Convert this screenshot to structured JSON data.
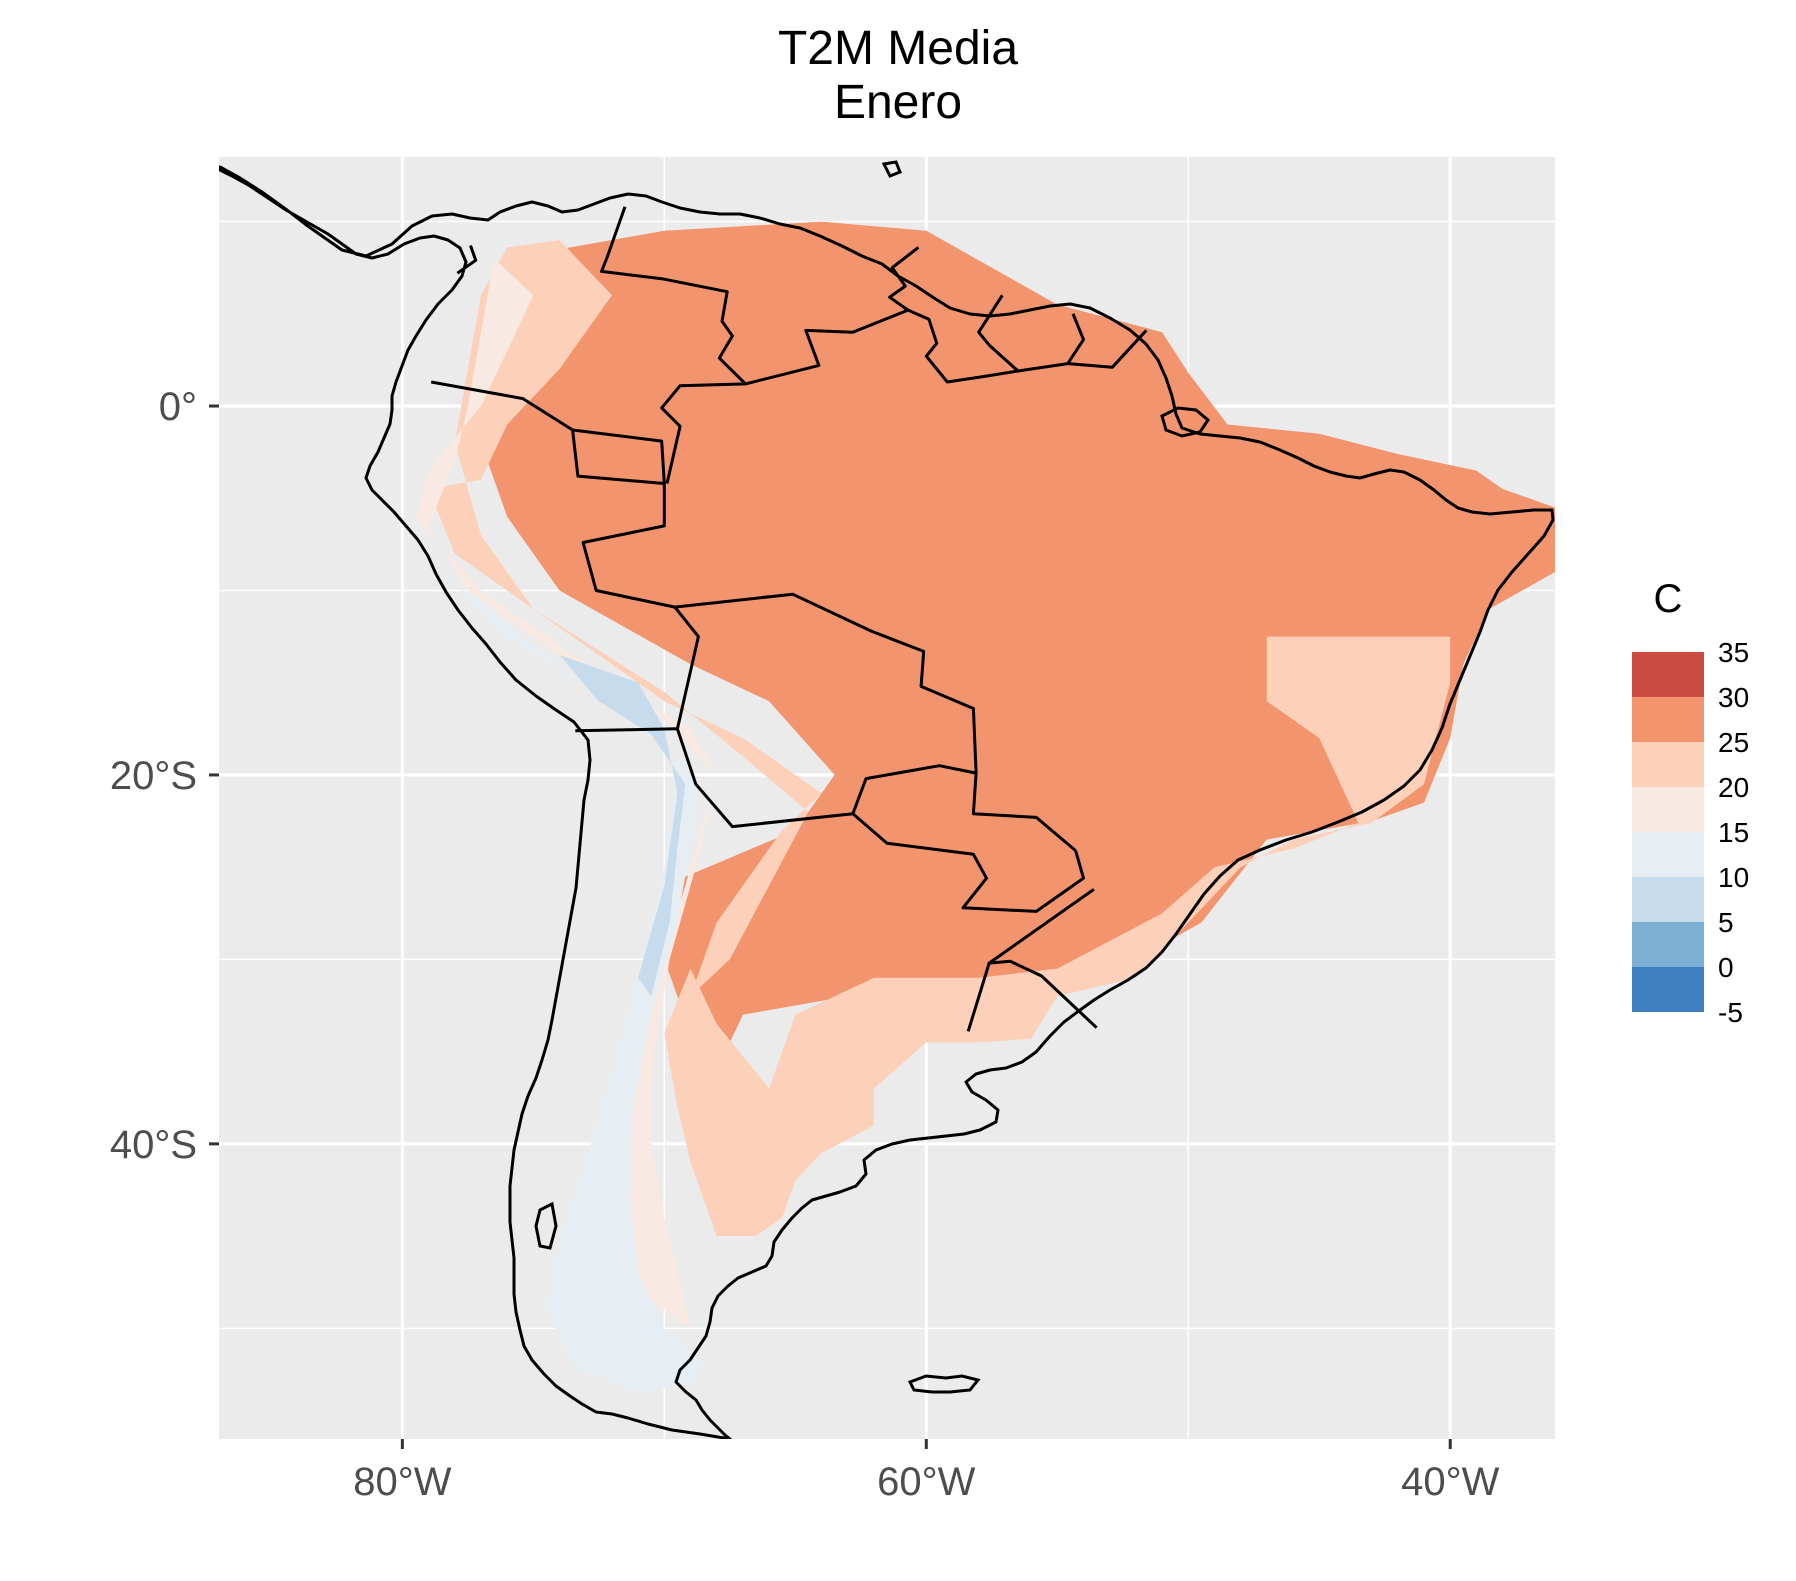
{
  "title": "T2M Media",
  "subtitle": "Enero",
  "chart_data": {
    "type": "heatmap",
    "variable": "T2M Media",
    "month": "Enero",
    "x_axis": {
      "range": [
        -87,
        -36
      ],
      "ticks": [
        -80,
        -60,
        -40
      ],
      "tick_labels": [
        "80°W",
        "60°W",
        "40°W"
      ]
    },
    "y_axis": {
      "range": [
        -56,
        13.5
      ],
      "ticks": [
        0,
        -20,
        -40
      ],
      "tick_labels": [
        "0°",
        "20°S",
        "40°S"
      ]
    },
    "grid": true,
    "legend": {
      "title": "C",
      "placement": "right",
      "bins": [
        {
          "min": 30,
          "max": 35,
          "color": "#cb4c41"
        },
        {
          "min": 25,
          "max": 30,
          "color": "#f2946e"
        },
        {
          "min": 20,
          "max": 25,
          "color": "#fdd0ba"
        },
        {
          "min": 15,
          "max": 20,
          "color": "#f8e9e3"
        },
        {
          "min": 10,
          "max": 15,
          "color": "#e7eef3"
        },
        {
          "min": 5,
          "max": 10,
          "color": "#c6dbec"
        },
        {
          "min": 0,
          "max": 5,
          "color": "#7bafd4"
        },
        {
          "min": -5,
          "max": 0,
          "color": "#3f7fc1"
        }
      ],
      "labels": [
        "35",
        "30",
        "25",
        "20",
        "15",
        "10",
        "5",
        "0",
        "-5"
      ]
    },
    "colors": {
      "panel": "#ebebeb",
      "grid": "#ffffff",
      "outline": "#000000"
    },
    "regions": [
      {
        "band": "25-30",
        "polygon": [
          [
            -76,
            8
          ],
          [
            -70,
            9.5
          ],
          [
            -64,
            10
          ],
          [
            -60,
            9.5
          ],
          [
            -55,
            5.5
          ],
          [
            -51,
            4
          ],
          [
            -50,
            1.8
          ],
          [
            -48.5,
            -1
          ],
          [
            -45,
            -1.5
          ],
          [
            -42,
            -2.6
          ],
          [
            -39,
            -3.5
          ],
          [
            -38,
            -4.5
          ],
          [
            -36,
            -5.5
          ],
          [
            -36,
            -9
          ],
          [
            -38.5,
            -11
          ],
          [
            -39.5,
            -14
          ],
          [
            -40,
            -18
          ],
          [
            -41,
            -21.5
          ],
          [
            -43,
            -22.5
          ],
          [
            -47,
            -23.5
          ],
          [
            -49.5,
            -28
          ],
          [
            -52,
            -30
          ],
          [
            -55,
            -31
          ],
          [
            -57,
            -33
          ],
          [
            -59,
            -33.5
          ],
          [
            -63,
            -32
          ],
          [
            -67,
            -33
          ],
          [
            -68,
            -36
          ],
          [
            -69,
            -34
          ],
          [
            -70,
            -30
          ],
          [
            -70,
            -26
          ],
          [
            -65,
            -23
          ],
          [
            -63.5,
            -20
          ],
          [
            -66,
            -16
          ],
          [
            -69,
            -14
          ],
          [
            -74,
            -10
          ],
          [
            -76,
            -6
          ],
          [
            -77,
            -2
          ],
          [
            -77,
            2
          ],
          [
            -76,
            6
          ]
        ]
      },
      {
        "band": "20-25",
        "polygon": [
          [
            -47,
            -12.5
          ],
          [
            -40,
            -12.5
          ],
          [
            -40,
            -15
          ],
          [
            -41,
            -20.5
          ],
          [
            -43,
            -22.6
          ],
          [
            -46,
            -23.5
          ],
          [
            -48,
            -25
          ],
          [
            -50,
            -28
          ],
          [
            -52,
            -31
          ],
          [
            -55,
            -32
          ],
          [
            -56,
            -34.3
          ],
          [
            -58,
            -34.5
          ],
          [
            -60,
            -34.5
          ],
          [
            -62,
            -37
          ],
          [
            -62,
            -39
          ],
          [
            -64,
            -40.5
          ],
          [
            -65,
            -42
          ],
          [
            -65.5,
            -44
          ],
          [
            -66.5,
            -45
          ],
          [
            -68,
            -45
          ],
          [
            -69,
            -41
          ],
          [
            -69.5,
            -38
          ],
          [
            -70,
            -34
          ],
          [
            -69,
            -30.5
          ],
          [
            -68,
            -33.5
          ],
          [
            -66,
            -37
          ],
          [
            -65,
            -33
          ],
          [
            -62,
            -31
          ],
          [
            -58,
            -31
          ],
          [
            -55,
            -30.5
          ],
          [
            -51,
            -27.5
          ],
          [
            -49,
            -25
          ],
          [
            -46,
            -24
          ],
          [
            -43.5,
            -22.6
          ],
          [
            -45,
            -18
          ],
          [
            -47,
            -16
          ]
        ]
      },
      {
        "band": "20-25",
        "polygon": [
          [
            -76,
            8.6
          ],
          [
            -74,
            9
          ],
          [
            -72,
            6
          ],
          [
            -74,
            2
          ],
          [
            -76,
            -1
          ],
          [
            -77,
            -4
          ],
          [
            -79,
            -4.5
          ],
          [
            -78,
            -8
          ],
          [
            -74,
            -12
          ],
          [
            -70,
            -16
          ],
          [
            -67,
            -18
          ],
          [
            -64,
            -21
          ],
          [
            -65.5,
            -23
          ],
          [
            -68,
            -28
          ],
          [
            -69,
            -32
          ],
          [
            -67.5,
            -30
          ],
          [
            -66,
            -26
          ],
          [
            -64.5,
            -22
          ],
          [
            -67,
            -19
          ],
          [
            -70,
            -15.5
          ],
          [
            -75,
            -11
          ],
          [
            -77,
            -7
          ],
          [
            -78,
            -2
          ],
          [
            -77.5,
            2
          ],
          [
            -77,
            6
          ]
        ]
      },
      {
        "band": "15-20",
        "polygon": [
          [
            -76.5,
            8
          ],
          [
            -75,
            6
          ],
          [
            -77,
            0
          ],
          [
            -79,
            -3.5
          ],
          [
            -79.5,
            -6
          ],
          [
            -77,
            -10
          ],
          [
            -72,
            -15
          ],
          [
            -69,
            -17.5
          ],
          [
            -68,
            -20
          ],
          [
            -69,
            -25
          ],
          [
            -70,
            -30
          ],
          [
            -71,
            -34
          ],
          [
            -71.5,
            -38
          ],
          [
            -72,
            -41
          ],
          [
            -73,
            -45
          ],
          [
            -72,
            -47
          ],
          [
            -70,
            -49
          ],
          [
            -69,
            -50
          ],
          [
            -69.5,
            -47
          ],
          [
            -70,
            -44
          ],
          [
            -70.5,
            -40
          ],
          [
            -70.5,
            -36
          ],
          [
            -69.8,
            -30
          ],
          [
            -68.8,
            -25
          ],
          [
            -68,
            -20
          ],
          [
            -70,
            -17
          ],
          [
            -73,
            -14.5
          ],
          [
            -77.5,
            -10
          ],
          [
            -79,
            -6.5
          ],
          [
            -78,
            -3
          ],
          [
            -77.5,
            0
          ],
          [
            -77,
            4
          ]
        ]
      },
      {
        "band": "10-15",
        "polygon": [
          [
            -78.5,
            -9
          ],
          [
            -75,
            -13
          ],
          [
            -71,
            -17
          ],
          [
            -69.5,
            -19
          ],
          [
            -70,
            -25
          ],
          [
            -71,
            -31
          ],
          [
            -72,
            -36
          ],
          [
            -73,
            -41
          ],
          [
            -74,
            -45
          ],
          [
            -74.5,
            -49
          ],
          [
            -73.5,
            -52
          ],
          [
            -71,
            -53.5
          ],
          [
            -69,
            -53
          ],
          [
            -68.5,
            -52
          ],
          [
            -70,
            -50
          ],
          [
            -71,
            -47
          ],
          [
            -71.3,
            -43
          ],
          [
            -71.2,
            -38
          ],
          [
            -70.5,
            -33
          ],
          [
            -69.5,
            -28
          ],
          [
            -68.8,
            -22
          ],
          [
            -69,
            -19.5
          ],
          [
            -72,
            -16
          ],
          [
            -76,
            -12.5
          ]
        ]
      },
      {
        "band": "5-10",
        "polygon": [
          [
            -74,
            -13.5
          ],
          [
            -71,
            -15
          ],
          [
            -70,
            -17.5
          ],
          [
            -69.5,
            -21
          ],
          [
            -70,
            -26
          ],
          [
            -71,
            -31
          ],
          [
            -70.5,
            -32
          ],
          [
            -69.8,
            -28
          ],
          [
            -69.5,
            -24
          ],
          [
            -69.2,
            -20.5
          ],
          [
            -70.5,
            -17.8
          ],
          [
            -72.5,
            -16
          ]
        ]
      }
    ],
    "borders": [
      [
        [
          -78.9,
          1.3
        ],
        [
          -75.4,
          0.4
        ],
        [
          -73.5,
          -1.3
        ],
        [
          -70.1,
          -1.9
        ],
        [
          -70,
          -4.2
        ]
      ],
      [
        [
          -73.5,
          -1.3
        ],
        [
          -73.3,
          -3.8
        ],
        [
          -70,
          -4.2
        ],
        [
          -70,
          -6.5
        ],
        [
          -73.1,
          -7.4
        ],
        [
          -72.6,
          -10
        ],
        [
          -69.6,
          -10.9
        ],
        [
          -68.7,
          -12.5
        ],
        [
          -69.1,
          -15
        ],
        [
          -69.5,
          -17.5
        ],
        [
          -68.8,
          -20.5
        ],
        [
          -67.4,
          -22.8
        ],
        [
          -62.8,
          -22.1
        ],
        [
          -61.5,
          -23.7
        ],
        [
          -58.2,
          -24.3
        ],
        [
          -57.7,
          -25.6
        ],
        [
          -58.6,
          -27.2
        ],
        [
          -55.8,
          -27.4
        ],
        [
          -54,
          -25.6
        ],
        [
          -54.3,
          -24.1
        ]
      ],
      [
        [
          -73.4,
          -17.6
        ],
        [
          -69.5,
          -17.5
        ]
      ],
      [
        [
          -62.8,
          -22.1
        ],
        [
          -62.3,
          -20.2
        ],
        [
          -59.5,
          -19.5
        ],
        [
          -58.1,
          -19.9
        ],
        [
          -58.2,
          -16.4
        ],
        [
          -60.2,
          -15.2
        ],
        [
          -60.1,
          -13.3
        ],
        [
          -62.1,
          -12.2
        ],
        [
          -65.1,
          -10.2
        ],
        [
          -69.6,
          -10.9
        ]
      ],
      [
        [
          -58.1,
          -19.9
        ],
        [
          -58.2,
          -22.1
        ],
        [
          -55.8,
          -22.3
        ],
        [
          -54.3,
          -24.1
        ]
      ],
      [
        [
          -53.6,
          -26.2
        ],
        [
          -57.6,
          -30.2
        ],
        [
          -56.8,
          -30.1
        ],
        [
          -55.6,
          -30.9
        ],
        [
          -53.5,
          -33.7
        ]
      ],
      [
        [
          -58.4,
          -33.9
        ],
        [
          -57.6,
          -30.2
        ]
      ],
      [
        [
          -71.5,
          10.8
        ],
        [
          -72.2,
          8
        ],
        [
          -72.4,
          7.3
        ],
        [
          -70.1,
          6.9
        ],
        [
          -67.6,
          6.2
        ],
        [
          -67.8,
          4.6
        ],
        [
          -67.4,
          3.8
        ],
        [
          -67.9,
          2.6
        ],
        [
          -66.9,
          1.2
        ],
        [
          -69.4,
          1.1
        ],
        [
          -70.1,
          -0.1
        ],
        [
          -69.4,
          -1.1
        ],
        [
          -69.9,
          -4.2
        ]
      ],
      [
        [
          -77.4,
          8.7
        ],
        [
          -77.2,
          7.9
        ],
        [
          -77.9,
          7.2
        ]
      ],
      [
        [
          -60.3,
          8.6
        ],
        [
          -61.3,
          7.5
        ],
        [
          -60.8,
          6.5
        ],
        [
          -61.4,
          5.9
        ],
        [
          -60.7,
          5.2
        ],
        [
          -62.8,
          4
        ],
        [
          -64.6,
          4.1
        ],
        [
          -64.1,
          2.2
        ],
        [
          -66.9,
          1.2
        ]
      ],
      [
        [
          -60.7,
          5.2
        ],
        [
          -59.9,
          4.7
        ],
        [
          -59.6,
          3.4
        ],
        [
          -60,
          2.7
        ],
        [
          -59.2,
          1.3
        ],
        [
          -57.8,
          1.6
        ],
        [
          -56.5,
          1.9
        ]
      ],
      [
        [
          -57.1,
          6
        ],
        [
          -58,
          4
        ],
        [
          -57.6,
          3.3
        ],
        [
          -56.5,
          1.9
        ],
        [
          -54.6,
          2.3
        ],
        [
          -54,
          3.6
        ],
        [
          -54.4,
          5
        ]
      ],
      [
        [
          -54.6,
          2.3
        ],
        [
          -52.9,
          2.1
        ],
        [
          -51.6,
          4.1
        ]
      ]
    ]
  }
}
